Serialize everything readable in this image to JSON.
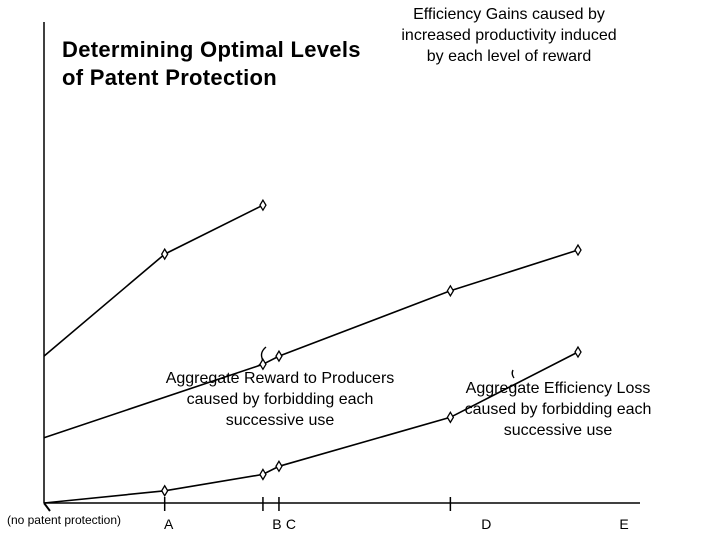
{
  "title": "Determining Optimal Levels\nof Patent Protection",
  "captions": {
    "efficiency_gains": "Efficiency Gains caused by\nincreased productivity induced\nby each level of reward",
    "aggregate_reward": "Aggregate Reward to Producers\ncaused by forbidding each\nsuccessive use",
    "aggregate_loss": "Aggregate Efficiency Loss\ncaused by forbidding each\nsuccessive use"
  },
  "origin_note": "(no patent protection)",
  "chart_data": {
    "type": "line",
    "title": "Determining Optimal Levels of Patent Protection",
    "xlabel": "",
    "ylabel": "",
    "xlim": [
      0,
      10
    ],
    "ylim": [
      0,
      10
    ],
    "grid": false,
    "legend": "none",
    "categories": [
      "A",
      "B",
      "C",
      "D",
      "E"
    ],
    "category_x": [
      2.26,
      4.1,
      4.4,
      7.61,
      10.0
    ],
    "series": [
      {
        "name": "Efficiency Gains caused by increased productivity induced by each level of reward",
        "x": [
          0.0,
          2.26,
          4.1
        ],
        "y": [
          3.6,
          6.1,
          7.3
        ],
        "markers": [
          false,
          true,
          true
        ]
      },
      {
        "name": "Aggregate Reward to Producers caused by forbidding each successive use",
        "x": [
          0.0,
          4.1,
          4.4,
          7.61,
          10.0
        ],
        "y": [
          1.6,
          3.4,
          3.6,
          5.2,
          6.2
        ],
        "markers": [
          false,
          true,
          true,
          true,
          true
        ]
      },
      {
        "name": "Aggregate Efficiency Loss caused by forbidding each successive use",
        "x": [
          0.0,
          2.26,
          4.1,
          4.4,
          7.61,
          10.0
        ],
        "y": [
          0.0,
          0.3,
          0.7,
          0.9,
          2.1,
          3.7
        ],
        "markers": [
          false,
          true,
          true,
          true,
          true,
          true
        ]
      }
    ]
  }
}
